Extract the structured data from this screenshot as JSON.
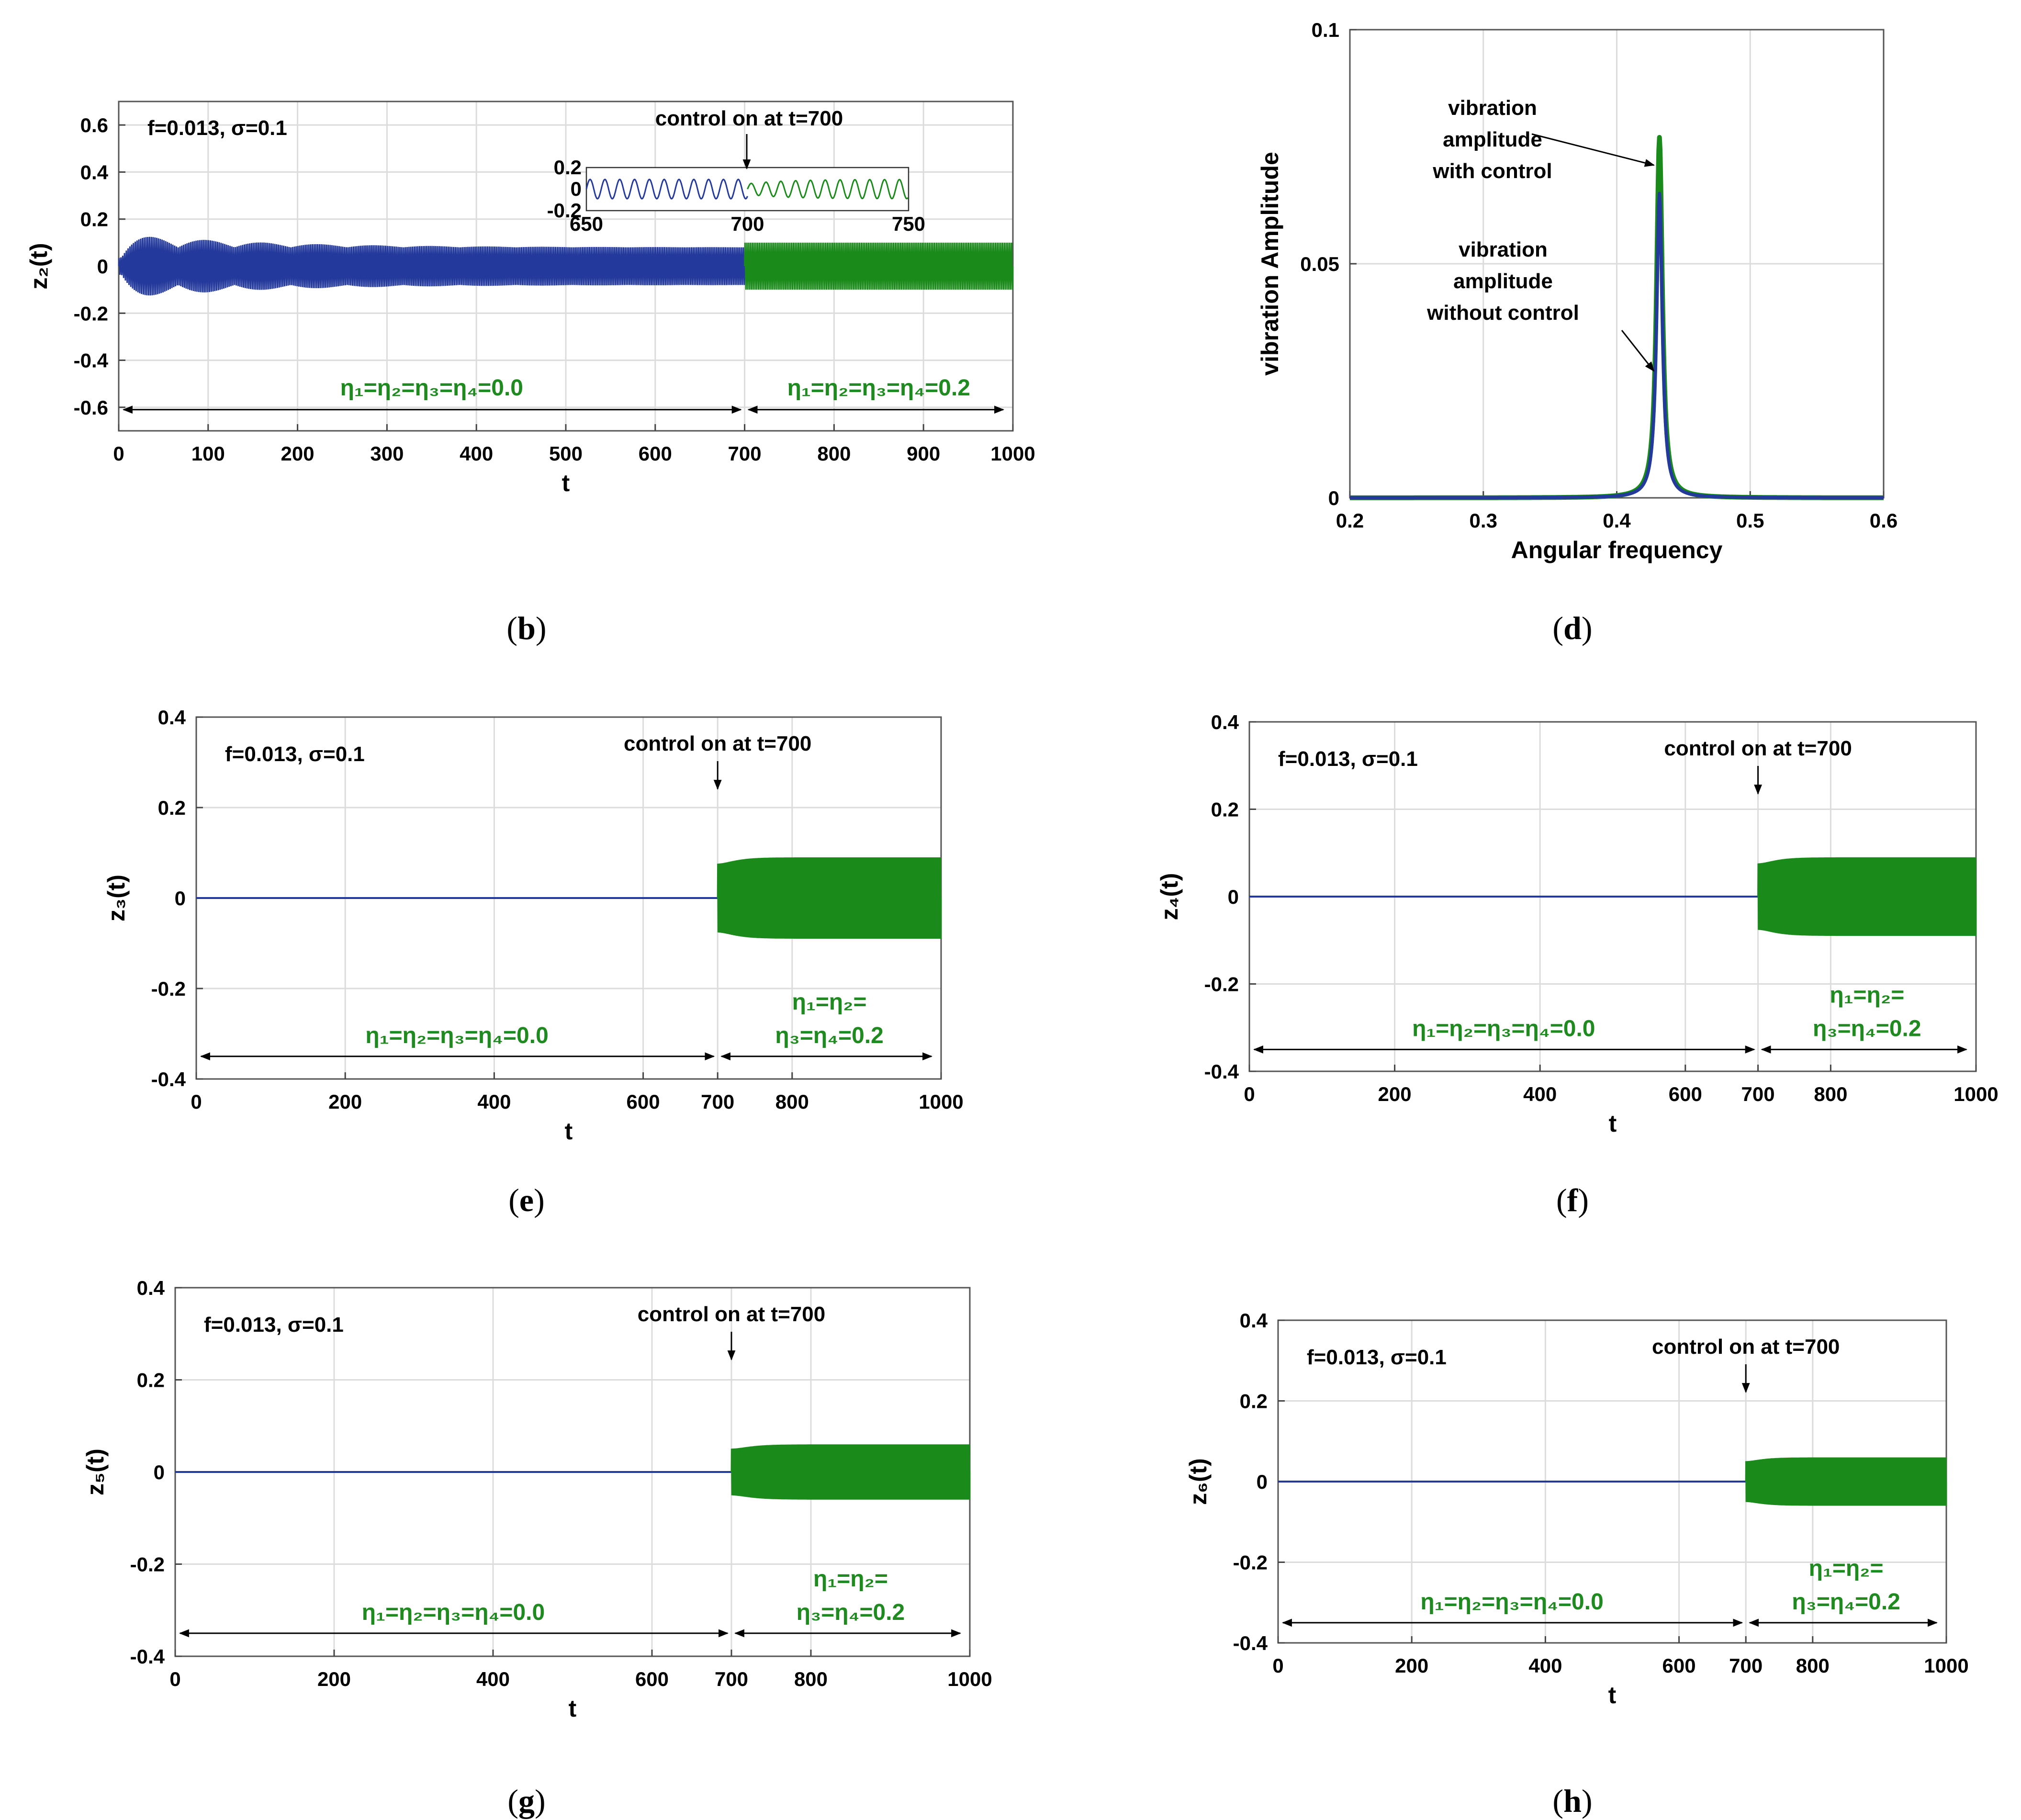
{
  "colors": {
    "blue": "#23399b",
    "green": "#1a8a1a",
    "grid": "#dcdcdc",
    "text_green": "#1f8a1f"
  },
  "chart_data": [
    {
      "id": "b",
      "type": "line",
      "caption": "b",
      "xlabel": "t",
      "ylabel": "z₂(t)",
      "xlim": [
        0,
        1000
      ],
      "ylim": [
        -0.7,
        0.7
      ],
      "xticks": [
        0,
        100,
        200,
        300,
        400,
        500,
        600,
        700,
        800,
        900,
        1000
      ],
      "yticks": [
        -0.6,
        -0.4,
        -0.2,
        0,
        0.2,
        0.4,
        0.6
      ],
      "params": "f=0.013, σ=0.1",
      "switch_t": 700,
      "series": [
        {
          "name": "without control",
          "color": "blue",
          "t_range": [
            0,
            700
          ],
          "behavior": "beating oscillation; early envelope peaks near ±0.14 decaying to steady amplitude ±0.08"
        },
        {
          "name": "with control",
          "color": "green",
          "t_range": [
            700,
            1000
          ],
          "behavior": "steady oscillation, amplitude ±0.1"
        }
      ],
      "eta_before": "η₁=η₂=η₃=η₄=0.0",
      "eta_after": "η₁=η₂=η₃=η₄=0.2",
      "annotation": "control on at t=700",
      "inset": {
        "xlim": [
          650,
          750
        ],
        "ylim": [
          -0.2,
          0.2
        ],
        "xticks": [
          650,
          700,
          750
        ],
        "yticks": [
          -0.2,
          0,
          0.2
        ],
        "blue_amplitude": 0.09,
        "green_amplitude": 0.09
      }
    },
    {
      "id": "d",
      "type": "line",
      "caption": "d",
      "xlabel": "Angular frequency",
      "ylabel": "vibration Amplitude",
      "xlim": [
        0.2,
        0.6
      ],
      "ylim": [
        0,
        0.1
      ],
      "xticks": [
        0.2,
        0.3,
        0.4,
        0.5,
        0.6
      ],
      "yticks": [
        0,
        0.05,
        0.1
      ],
      "series": [
        {
          "name": "vibration amplitude with control",
          "color": "green",
          "peak_x": 0.432,
          "peak_y": 0.077
        },
        {
          "name": "vibration amplitude without control",
          "color": "blue",
          "peak_x": 0.432,
          "peak_y": 0.065
        }
      ],
      "annotations": [
        {
          "lines": [
            "vibration",
            "amplitude",
            "with control"
          ]
        },
        {
          "lines": [
            "vibration",
            "amplitude",
            "without control"
          ]
        }
      ]
    },
    {
      "id": "e",
      "type": "line",
      "caption": "e",
      "xlabel": "t",
      "ylabel": "z₃(t)",
      "xlim": [
        0,
        1000
      ],
      "ylim": [
        -0.4,
        0.4
      ],
      "xticks": [
        0,
        200,
        400,
        600,
        700,
        800,
        1000
      ],
      "yticks": [
        -0.4,
        -0.2,
        0,
        0.2,
        0.4
      ],
      "params": "f=0.013, σ=0.1",
      "annotation": "control on at t=700",
      "switch_t": 700,
      "green_amplitude": 0.09,
      "eta_before": "η₁=η₂=η₃=η₄=0.0",
      "eta_after": [
        "η₁=η₂=",
        "η₃=η₄=0.2"
      ]
    },
    {
      "id": "f",
      "type": "line",
      "caption": "f",
      "xlabel": "t",
      "ylabel": "z₄(t)",
      "xlim": [
        0,
        1000
      ],
      "ylim": [
        -0.4,
        0.4
      ],
      "xticks": [
        0,
        200,
        400,
        600,
        700,
        800,
        1000
      ],
      "yticks": [
        -0.4,
        -0.2,
        0,
        0.2,
        0.4
      ],
      "params": "f=0.013, σ=0.1",
      "annotation": "control on at t=700",
      "switch_t": 700,
      "green_amplitude": 0.09,
      "eta_before": "η₁=η₂=η₃=η₄=0.0",
      "eta_after": [
        "η₁=η₂=",
        "η₃=η₄=0.2"
      ]
    },
    {
      "id": "g",
      "type": "line",
      "caption": "g",
      "xlabel": "t",
      "ylabel": "z₅(t)",
      "xlim": [
        0,
        1000
      ],
      "ylim": [
        -0.4,
        0.4
      ],
      "xticks": [
        0,
        200,
        400,
        600,
        700,
        800,
        1000
      ],
      "yticks": [
        -0.4,
        -0.2,
        0,
        0.2,
        0.4
      ],
      "params": "f=0.013, σ=0.1",
      "annotation": "control on at t=700",
      "switch_t": 700,
      "green_amplitude": 0.06,
      "eta_before": "η₁=η₂=η₃=η₄=0.0",
      "eta_after": [
        "η₁=η₂=",
        "η₃=η₄=0.2"
      ]
    },
    {
      "id": "h",
      "type": "line",
      "caption": "h",
      "xlabel": "t",
      "ylabel": "z₆(t)",
      "xlim": [
        0,
        1000
      ],
      "ylim": [
        -0.4,
        0.4
      ],
      "xticks": [
        0,
        200,
        400,
        600,
        700,
        800,
        1000
      ],
      "yticks": [
        -0.4,
        -0.2,
        0,
        0.2,
        0.4
      ],
      "params": "f=0.013, σ=0.1",
      "annotation": "control on at t=700",
      "switch_t": 700,
      "green_amplitude": 0.06,
      "eta_before": "η₁=η₂=η₃=η₄=0.0",
      "eta_after": [
        "η₁=η₂=",
        "η₃=η₄=0.2"
      ]
    }
  ]
}
